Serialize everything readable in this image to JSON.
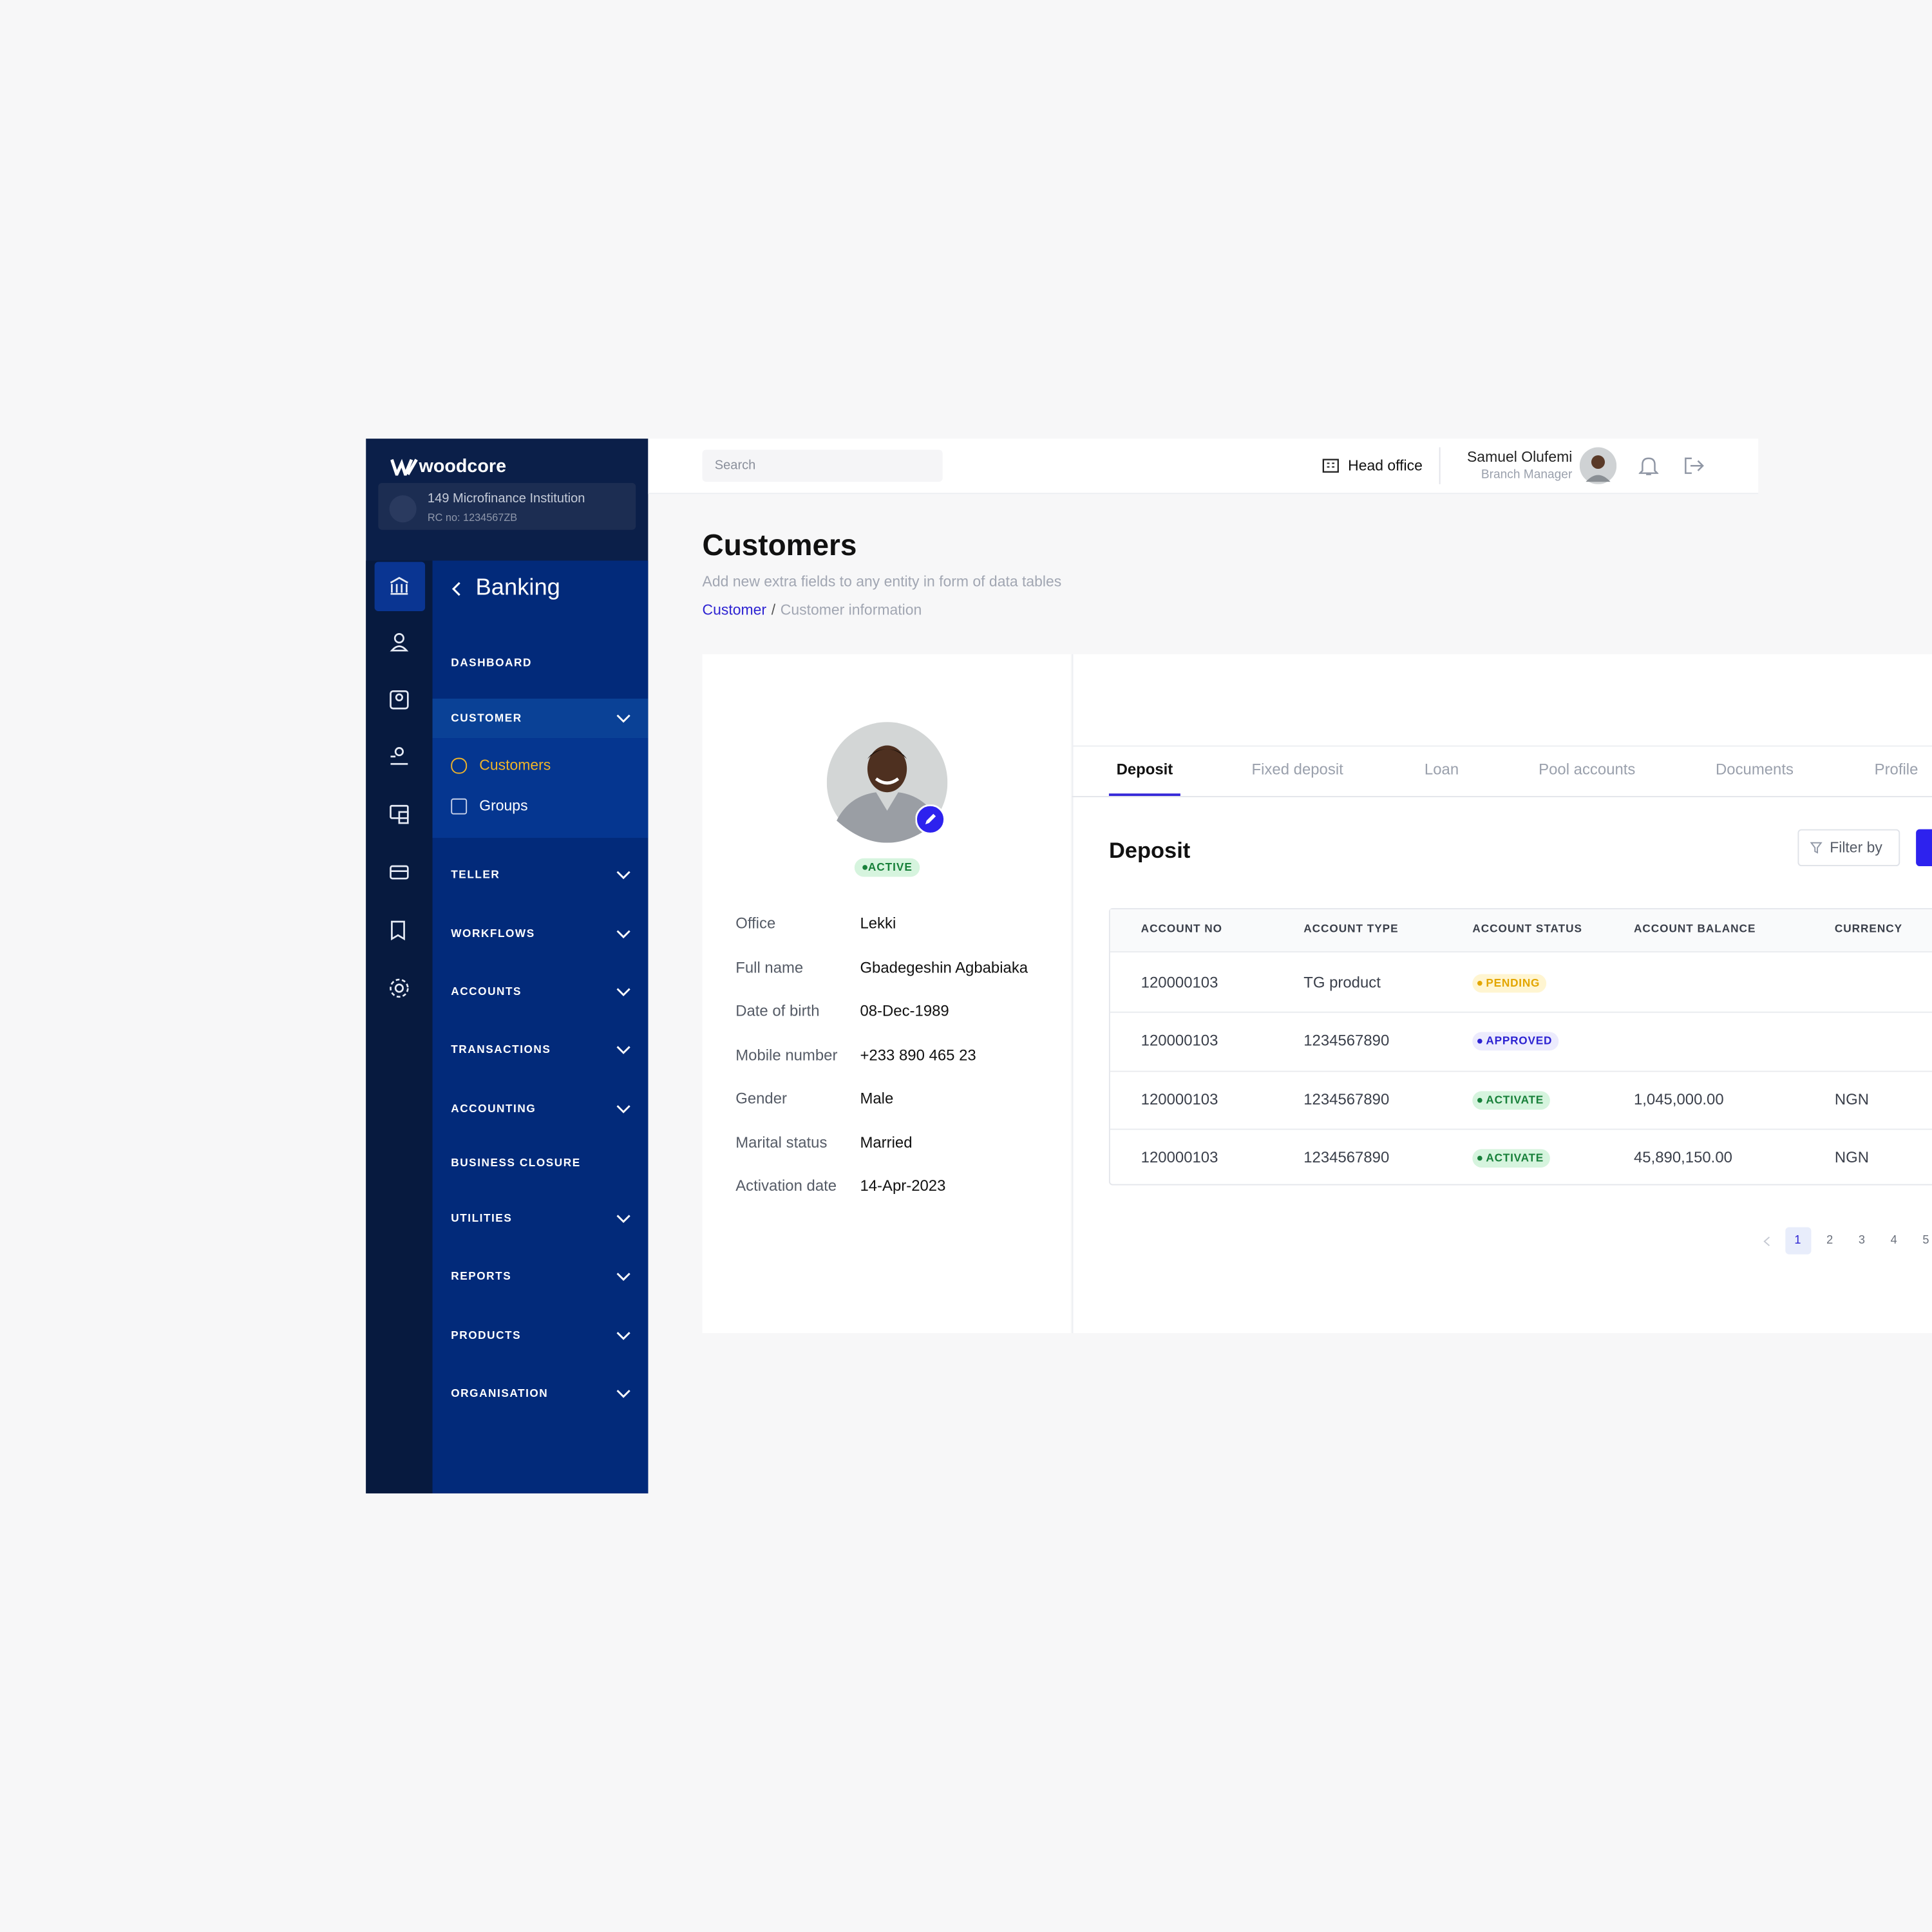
{
  "sidebar": {
    "brand": "woodcore",
    "institution": "149 Microfinance Institution",
    "rc": "RC no: 1234567ZB",
    "section": "Banking",
    "menu": [
      {
        "label": "DASHBOARD",
        "expandable": false
      },
      {
        "label": "CUSTOMER",
        "expandable": true,
        "expanded": true,
        "children": [
          {
            "label": "Customers",
            "active": true
          },
          {
            "label": "Groups",
            "active": false
          }
        ]
      },
      {
        "label": "TELLER",
        "expandable": true
      },
      {
        "label": "WORKFLOWS",
        "expandable": true
      },
      {
        "label": "ACCOUNTS",
        "expandable": true
      },
      {
        "label": "TRANSACTIONS",
        "expandable": true
      },
      {
        "label": "ACCOUNTING",
        "expandable": true
      },
      {
        "label": "BUSINESS CLOSURE",
        "expandable": false
      },
      {
        "label": "UTILITIES",
        "expandable": true
      },
      {
        "label": "REPORTS",
        "expandable": true
      },
      {
        "label": "PRODUCTS",
        "expandable": true
      },
      {
        "label": "ORGANISATION",
        "expandable": true
      }
    ]
  },
  "topbar": {
    "search": "Search",
    "office": "Head office",
    "user_name": "Samuel Olufemi",
    "user_role": "Branch Manager"
  },
  "header": {
    "title": "Customers",
    "subtitle": "Add new extra fields to any entity in form of data tables",
    "breadcrumb": [
      "Customer",
      "Customer information"
    ],
    "breadcrumb_separator": "/"
  },
  "profile": {
    "status": "ACTIVE",
    "fields": [
      [
        "Office",
        "Lekki"
      ],
      [
        "Full name",
        "Gbadegeshin Agbabiaka"
      ],
      [
        "Date of birth",
        "08-Dec-1989"
      ],
      [
        "Mobile number",
        "+233 890 465 23"
      ],
      [
        "Gender",
        "Male"
      ],
      [
        "Marital status",
        "Married"
      ],
      [
        "Activation date",
        "14-Apr-2023"
      ]
    ]
  },
  "tabs": [
    "Deposit",
    "Fixed deposit",
    "Loan",
    "Pool accounts",
    "Documents",
    "Profile"
  ],
  "active_tab": 0,
  "panel": {
    "title": "Deposit",
    "filter": "Filter by"
  },
  "table": {
    "columns": [
      "ACCOUNT NO",
      "ACCOUNT TYPE",
      "ACCOUNT STATUS",
      "ACCOUNT BALANCE",
      "CURRENCY"
    ],
    "rows": [
      [
        "120000103",
        "TG product",
        "PENDING",
        null,
        null
      ],
      [
        "120000103",
        "1234567890",
        "APPROVED",
        null,
        null
      ],
      [
        "120000103",
        "1234567890",
        "ACTIVATE",
        "1,045,000.00",
        "NGN"
      ],
      [
        "120000103",
        "1234567890",
        "ACTIVATE",
        "45,890,150.00",
        "NGN"
      ]
    ],
    "status_colors": [
      {
        "bg": "#fff5d1",
        "fg": "#e3a600"
      },
      {
        "bg": "#ecebfd",
        "fg": "#2d23d2"
      },
      {
        "bg": "#d6f4de",
        "fg": "#18803a"
      },
      {
        "bg": "#d6f4de",
        "fg": "#18803a"
      }
    ]
  },
  "pagination": {
    "pages": [
      1,
      2,
      3,
      4,
      5
    ],
    "current": 1
  }
}
